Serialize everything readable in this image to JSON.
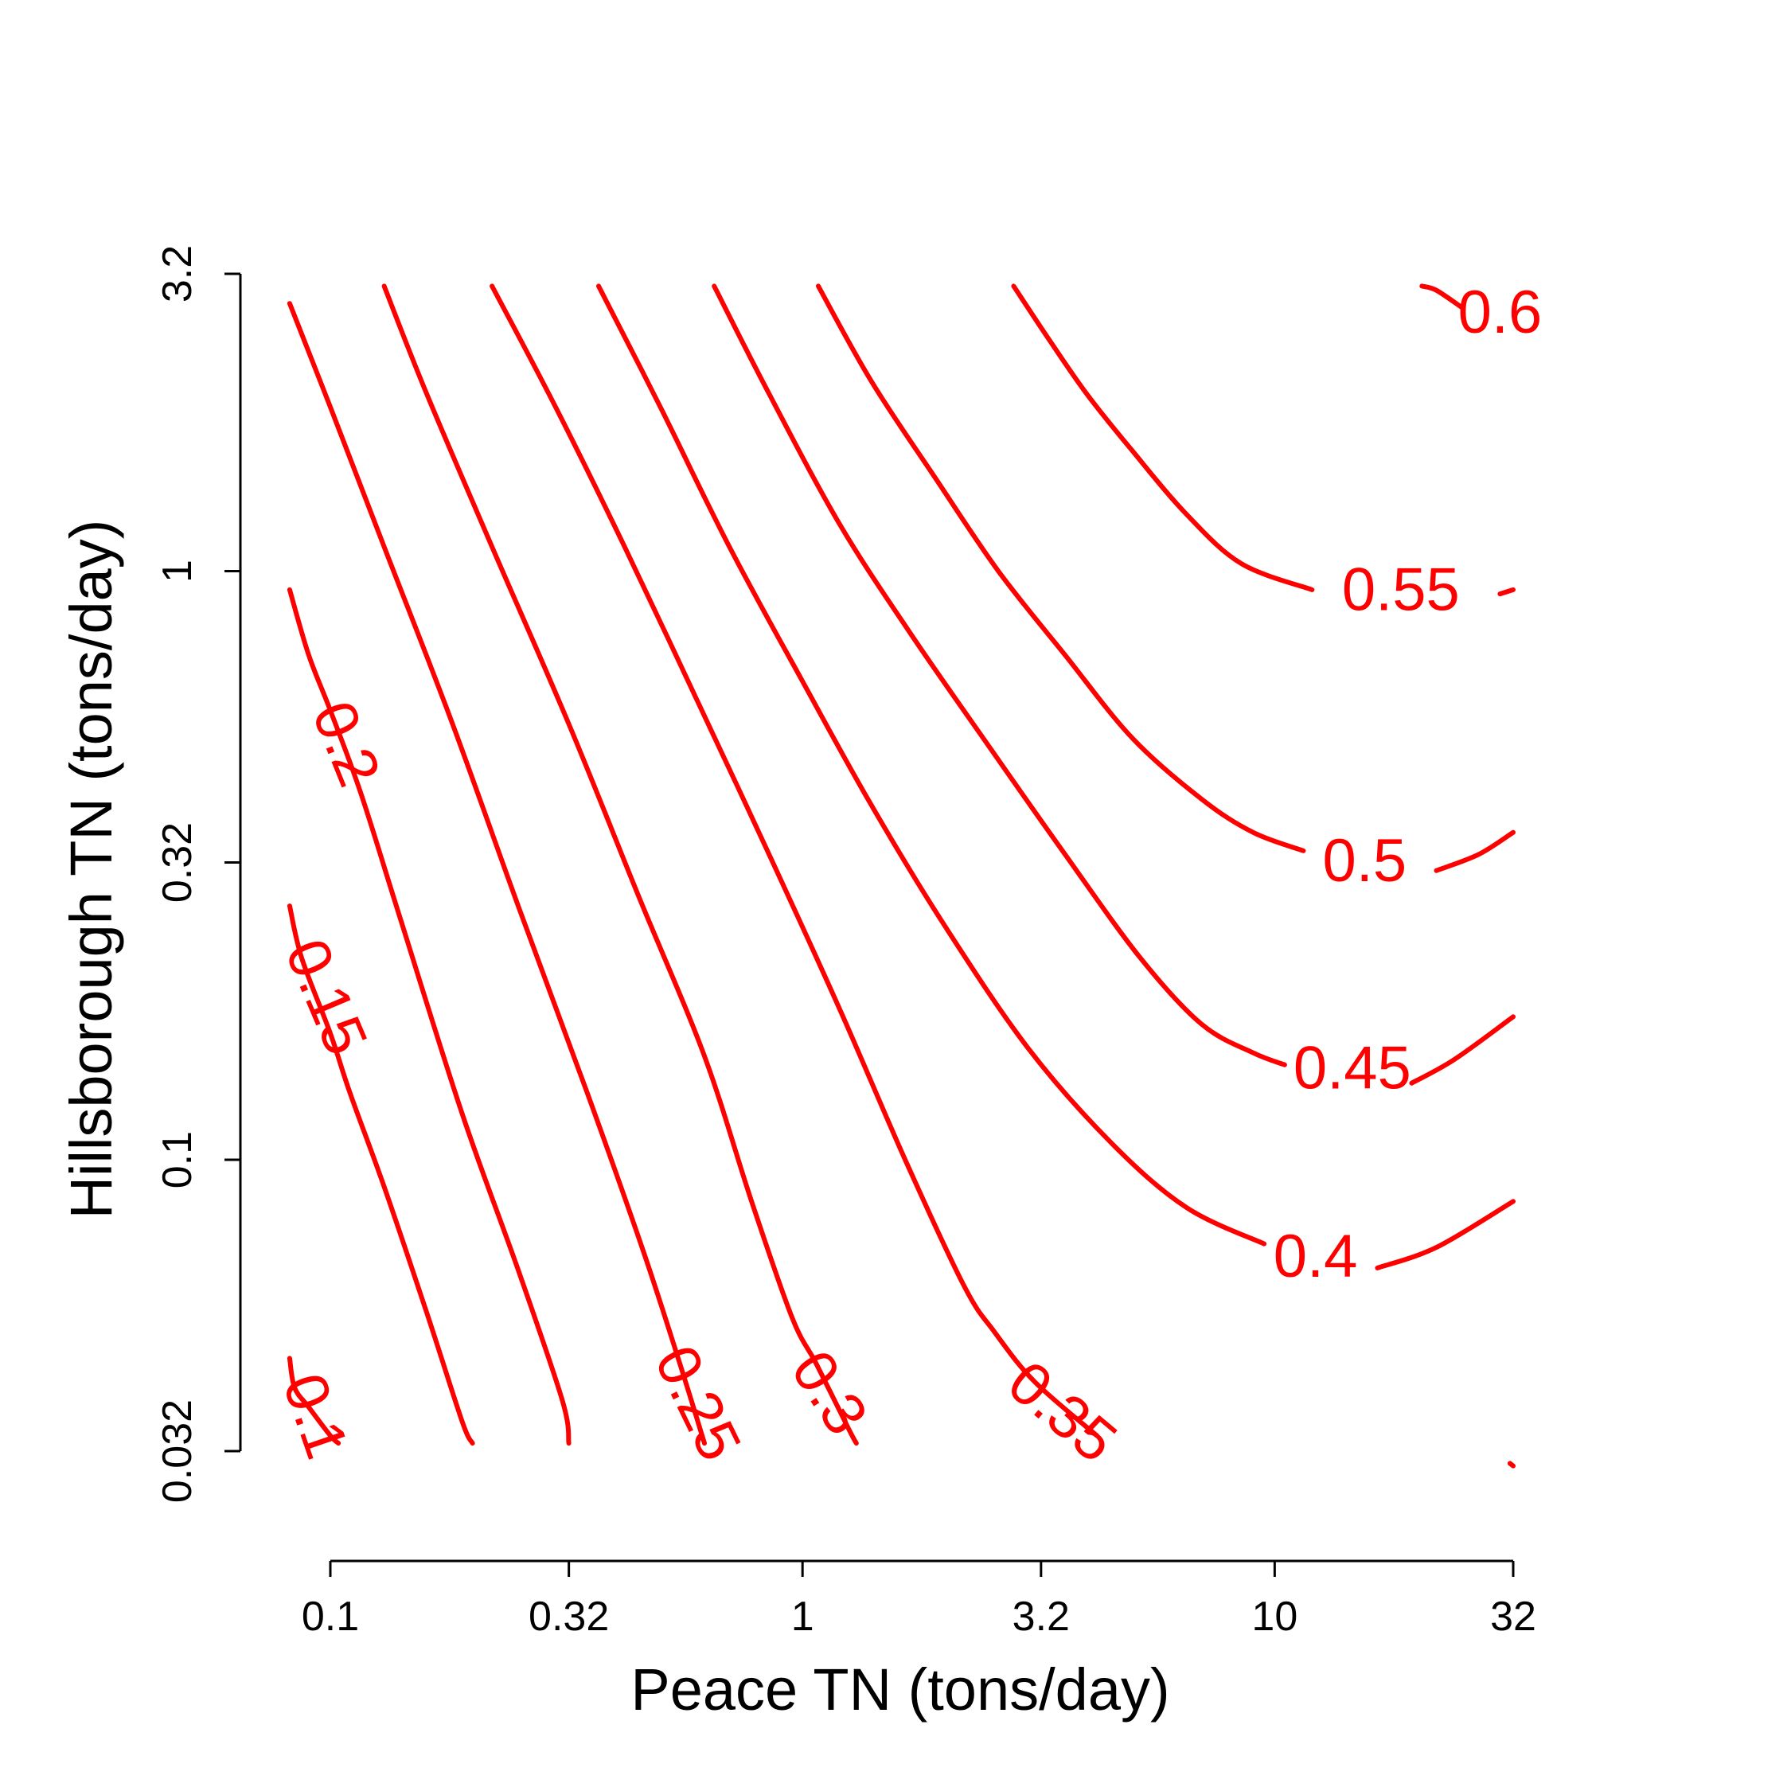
{
  "chart_data": {
    "type": "contour",
    "xlabel": "Peace TN (tons/day)",
    "ylabel": "Hillsborough TN (tons/day)",
    "x_scale": "log",
    "y_scale": "log",
    "xlim": [
      0.1,
      32
    ],
    "ylim": [
      0.032,
      3.2
    ],
    "x_ticks": [
      "0.1",
      "0.32",
      "1",
      "3.2",
      "10",
      "32"
    ],
    "y_ticks": [
      "0.032",
      "0.1",
      "0.32",
      "1",
      "3.2"
    ],
    "line_color": "#ff0000",
    "levels": [
      {
        "label": "0.1",
        "points": [
          [
            0.082,
            0.046
          ],
          [
            0.084,
            0.041
          ],
          [
            0.09,
            0.038
          ],
          [
            0.1,
            0.034
          ],
          [
            0.104,
            0.033
          ]
        ]
      },
      {
        "label": "0.15",
        "points": [
          [
            0.082,
            0.27
          ],
          [
            0.087,
            0.22
          ],
          [
            0.1,
            0.164
          ],
          [
            0.11,
            0.13
          ],
          [
            0.13,
            0.09
          ],
          [
            0.16,
            0.055
          ],
          [
            0.19,
            0.036
          ],
          [
            0.2,
            0.033
          ]
        ]
      },
      {
        "label": "0.2",
        "points": [
          [
            0.082,
            0.93
          ],
          [
            0.09,
            0.72
          ],
          [
            0.1,
            0.58
          ],
          [
            0.116,
            0.42
          ],
          [
            0.14,
            0.26
          ],
          [
            0.19,
            0.12
          ],
          [
            0.25,
            0.065
          ],
          [
            0.31,
            0.039
          ],
          [
            0.32,
            0.033
          ]
        ]
      },
      {
        "label": "0.25",
        "points": [
          [
            0.082,
            2.85
          ],
          [
            0.1,
            1.9
          ],
          [
            0.13,
            1.1
          ],
          [
            0.18,
            0.56
          ],
          [
            0.25,
            0.27
          ],
          [
            0.35,
            0.13
          ],
          [
            0.46,
            0.07
          ],
          [
            0.55,
            0.045
          ],
          [
            0.62,
            0.033
          ]
        ]
      },
      {
        "label": "0.3",
        "points": [
          [
            0.13,
            3.05
          ],
          [
            0.16,
            2.0
          ],
          [
            0.22,
            1.1
          ],
          [
            0.32,
            0.55
          ],
          [
            0.45,
            0.28
          ],
          [
            0.62,
            0.15
          ],
          [
            0.78,
            0.085
          ],
          [
            0.95,
            0.054
          ],
          [
            1.07,
            0.045
          ],
          [
            1.25,
            0.035
          ],
          [
            1.3,
            0.033
          ]
        ]
      },
      {
        "label": "0.35",
        "points": [
          [
            0.22,
            3.05
          ],
          [
            0.3,
            1.9
          ],
          [
            0.42,
            1.1
          ],
          [
            0.6,
            0.6
          ],
          [
            0.85,
            0.33
          ],
          [
            1.2,
            0.18
          ],
          [
            1.65,
            0.1
          ],
          [
            2.2,
            0.061
          ],
          [
            2.55,
            0.051
          ],
          [
            3.1,
            0.042
          ],
          [
            4.2,
            0.034
          ]
        ]
      },
      {
        "label": "0.4",
        "points": [
          [
            0.37,
            3.05
          ],
          [
            0.5,
            1.9
          ],
          [
            0.7,
            1.1
          ],
          [
            1.0,
            0.65
          ],
          [
            1.4,
            0.4
          ],
          [
            2.0,
            0.25
          ],
          [
            3.0,
            0.155
          ],
          [
            4.5,
            0.107
          ],
          [
            6.5,
            0.083
          ],
          [
            9.5,
            0.072
          ]
        ]
      },
      {
        "label": "0.45",
        "points": [
          [
            0.65,
            3.05
          ],
          [
            0.85,
            2.0
          ],
          [
            1.2,
            1.2
          ],
          [
            1.7,
            0.78
          ],
          [
            2.5,
            0.5
          ],
          [
            3.6,
            0.33
          ],
          [
            5.2,
            0.22
          ],
          [
            7.0,
            0.17
          ],
          [
            9.0,
            0.152
          ],
          [
            10.5,
            0.145
          ]
        ]
      },
      {
        "label": "0.5",
        "points": [
          [
            1.08,
            3.05
          ],
          [
            1.4,
            2.1
          ],
          [
            1.9,
            1.45
          ],
          [
            2.6,
            1.0
          ],
          [
            3.6,
            0.72
          ],
          [
            5.0,
            0.52
          ],
          [
            7.0,
            0.41
          ],
          [
            9.0,
            0.36
          ],
          [
            11.5,
            0.335
          ]
        ]
      },
      {
        "label": "0.55",
        "points": [
          [
            2.8,
            3.05
          ],
          [
            3.3,
            2.5
          ],
          [
            4.0,
            2.0
          ],
          [
            5.0,
            1.6
          ],
          [
            6.5,
            1.25
          ],
          [
            8.5,
            1.03
          ],
          [
            12.0,
            0.93
          ]
        ]
      },
      {
        "label": "0.6",
        "points": [
          [
            20.5,
            3.05
          ],
          [
            22.0,
            3.0
          ],
          [
            25.0,
            2.8
          ]
        ]
      }
    ],
    "extra_segments": [
      {
        "level": "0.6",
        "points": [
          [
            30.0,
            0.915
          ],
          [
            32.0,
            0.93
          ]
        ]
      },
      {
        "level": "0.5",
        "points": [
          [
            22.0,
            0.31
          ],
          [
            27.0,
            0.33
          ],
          [
            32.0,
            0.36
          ]
        ]
      },
      {
        "level": "0.45",
        "points": [
          [
            19.5,
            0.135
          ],
          [
            24.0,
            0.148
          ],
          [
            32.0,
            0.175
          ]
        ]
      },
      {
        "level": "0.4",
        "points": [
          [
            16.5,
            0.0655
          ],
          [
            22.0,
            0.071
          ],
          [
            32.0,
            0.085
          ]
        ]
      },
      {
        "level": "0.35",
        "points": [
          [
            31.5,
            0.0305
          ],
          [
            32.0,
            0.0302
          ]
        ]
      }
    ],
    "label_positions": [
      {
        "level": "0.1",
        "x": 0.093,
        "y": 0.0367,
        "angle": 71
      },
      {
        "level": "0.15",
        "x": 0.098,
        "y": 0.189,
        "angle": 67
      },
      {
        "level": "0.2",
        "x": 0.108,
        "y": 0.509,
        "angle": 68
      },
      {
        "level": "0.25",
        "x": 0.6,
        "y": 0.0386,
        "angle": 64
      },
      {
        "level": "0.3",
        "x": 1.14,
        "y": 0.0402,
        "angle": 57
      },
      {
        "level": "0.35",
        "x": 3.55,
        "y": 0.0373,
        "angle": 40
      },
      {
        "level": "0.4",
        "x": 12.2,
        "y": 0.0685,
        "angle": 0
      },
      {
        "level": "0.45",
        "x": 14.6,
        "y": 0.143,
        "angle": 0
      },
      {
        "level": "0.5",
        "x": 15.5,
        "y": 0.322,
        "angle": 0
      },
      {
        "level": "0.55",
        "x": 18.5,
        "y": 0.93,
        "angle": 0
      },
      {
        "level": "0.6",
        "x": 30.0,
        "y": 2.75,
        "angle": 0
      }
    ]
  }
}
